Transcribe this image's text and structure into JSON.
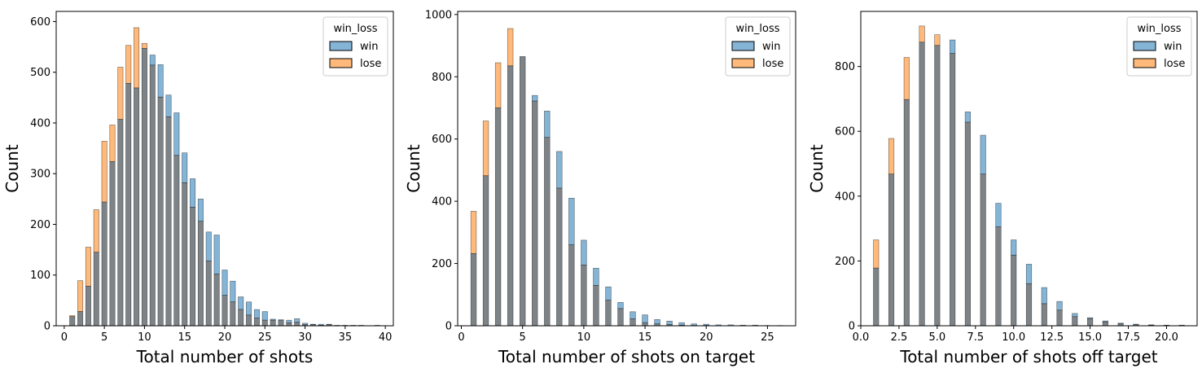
{
  "colors": {
    "win": "#1f77b4",
    "lose": "#ff7f0e",
    "overlap": "#7d8387"
  },
  "chart_data": [
    {
      "type": "bar",
      "title": "",
      "xlabel": "Total number of shots",
      "ylabel": "Count",
      "xlim": [
        -1,
        41
      ],
      "ylim": [
        0,
        620
      ],
      "xticks": [
        0,
        5,
        10,
        15,
        20,
        25,
        30,
        35,
        40
      ],
      "xtick_labels": [
        "0",
        "5",
        "10",
        "15",
        "20",
        "25",
        "30",
        "35",
        "40"
      ],
      "yticks": [
        0,
        100,
        200,
        300,
        400,
        500,
        600
      ],
      "ytick_labels": [
        "0",
        "100",
        "200",
        "300",
        "400",
        "500",
        "600"
      ],
      "bar_width": 0.65,
      "legend": {
        "title": "win_loss",
        "position": "top-right",
        "entries": [
          "win",
          "lose"
        ]
      },
      "x": [
        1,
        2,
        3,
        4,
        5,
        6,
        7,
        8,
        9,
        10,
        11,
        12,
        13,
        14,
        15,
        16,
        17,
        18,
        19,
        20,
        21,
        22,
        23,
        24,
        25,
        26,
        27,
        28,
        29,
        30,
        31,
        32,
        33,
        34,
        35,
        36,
        37,
        38,
        39
      ],
      "series": [
        {
          "name": "win",
          "values": [
            18,
            28,
            78,
            145,
            244,
            324,
            407,
            478,
            469,
            547,
            534,
            515,
            455,
            420,
            341,
            290,
            250,
            185,
            179,
            110,
            88,
            57,
            47,
            32,
            28,
            13,
            12,
            11,
            14,
            5,
            3,
            3,
            3,
            1,
            1,
            1,
            1,
            0,
            1
          ]
        },
        {
          "name": "lose",
          "values": [
            20,
            89,
            155,
            229,
            364,
            396,
            510,
            553,
            588,
            557,
            514,
            451,
            412,
            336,
            282,
            234,
            206,
            128,
            102,
            60,
            47,
            32,
            21,
            15,
            11,
            11,
            10,
            6,
            7,
            2,
            2,
            1,
            2,
            0,
            0,
            1,
            0,
            0,
            0
          ]
        }
      ]
    },
    {
      "type": "bar",
      "title": "",
      "xlabel": "Total number of shots on target",
      "ylabel": "Count",
      "xlim": [
        -0.3,
        27.3
      ],
      "ylim": [
        0,
        1010
      ],
      "xticks": [
        0,
        5,
        10,
        15,
        20,
        25
      ],
      "xtick_labels": [
        "0",
        "5",
        "10",
        "15",
        "20",
        "25"
      ],
      "yticks": [
        0,
        200,
        400,
        600,
        800,
        1000
      ],
      "ytick_labels": [
        "0",
        "200",
        "400",
        "600",
        "800",
        "1000"
      ],
      "bar_width": 0.45,
      "legend": {
        "title": "win_loss",
        "position": "top-right",
        "entries": [
          "win",
          "lose"
        ]
      },
      "x": [
        1,
        2,
        3,
        4,
        5,
        6,
        7,
        8,
        9,
        10,
        11,
        12,
        13,
        14,
        15,
        16,
        17,
        18,
        19,
        20,
        21,
        22,
        23,
        24,
        25,
        26
      ],
      "series": [
        {
          "name": "win",
          "values": [
            232,
            482,
            700,
            835,
            865,
            740,
            690,
            560,
            410,
            275,
            185,
            125,
            75,
            45,
            35,
            20,
            15,
            10,
            6,
            5,
            3,
            3,
            2,
            2,
            1,
            1
          ]
        },
        {
          "name": "lose",
          "values": [
            368,
            658,
            845,
            955,
            865,
            722,
            605,
            442,
            260,
            195,
            130,
            82,
            55,
            22,
            10,
            6,
            4,
            2,
            1,
            1,
            0,
            0,
            0,
            0,
            0,
            0
          ]
        }
      ]
    },
    {
      "type": "bar",
      "title": "",
      "xlabel": "Total number of shots off target",
      "ylabel": "Count",
      "xlim": [
        0,
        22
      ],
      "ylim": [
        0,
        970
      ],
      "xticks": [
        0,
        2.5,
        5,
        7.5,
        10,
        12.5,
        15,
        17.5,
        20
      ],
      "xtick_labels": [
        "0.0",
        "2.5",
        "5.0",
        "7.5",
        "10.0",
        "12.5",
        "15.0",
        "17.5",
        "20.0"
      ],
      "yticks": [
        0,
        200,
        400,
        600,
        800
      ],
      "ytick_labels": [
        "0",
        "200",
        "400",
        "600",
        "800"
      ],
      "bar_width": 0.35,
      "legend": {
        "title": "win_loss",
        "position": "top-right",
        "entries": [
          "win",
          "lose"
        ]
      },
      "x": [
        1,
        2,
        3,
        4,
        5,
        6,
        7,
        8,
        9,
        10,
        11,
        12,
        13,
        14,
        15,
        16,
        17,
        18,
        19,
        20,
        21
      ],
      "series": [
        {
          "name": "win",
          "values": [
            178,
            468,
            698,
            875,
            865,
            882,
            660,
            588,
            378,
            265,
            190,
            118,
            75,
            38,
            25,
            15,
            8,
            5,
            3,
            2,
            2
          ]
        },
        {
          "name": "lose",
          "values": [
            265,
            578,
            828,
            925,
            898,
            840,
            628,
            468,
            305,
            218,
            130,
            68,
            48,
            28,
            22,
            12,
            6,
            3,
            2,
            1,
            1
          ]
        }
      ]
    }
  ]
}
